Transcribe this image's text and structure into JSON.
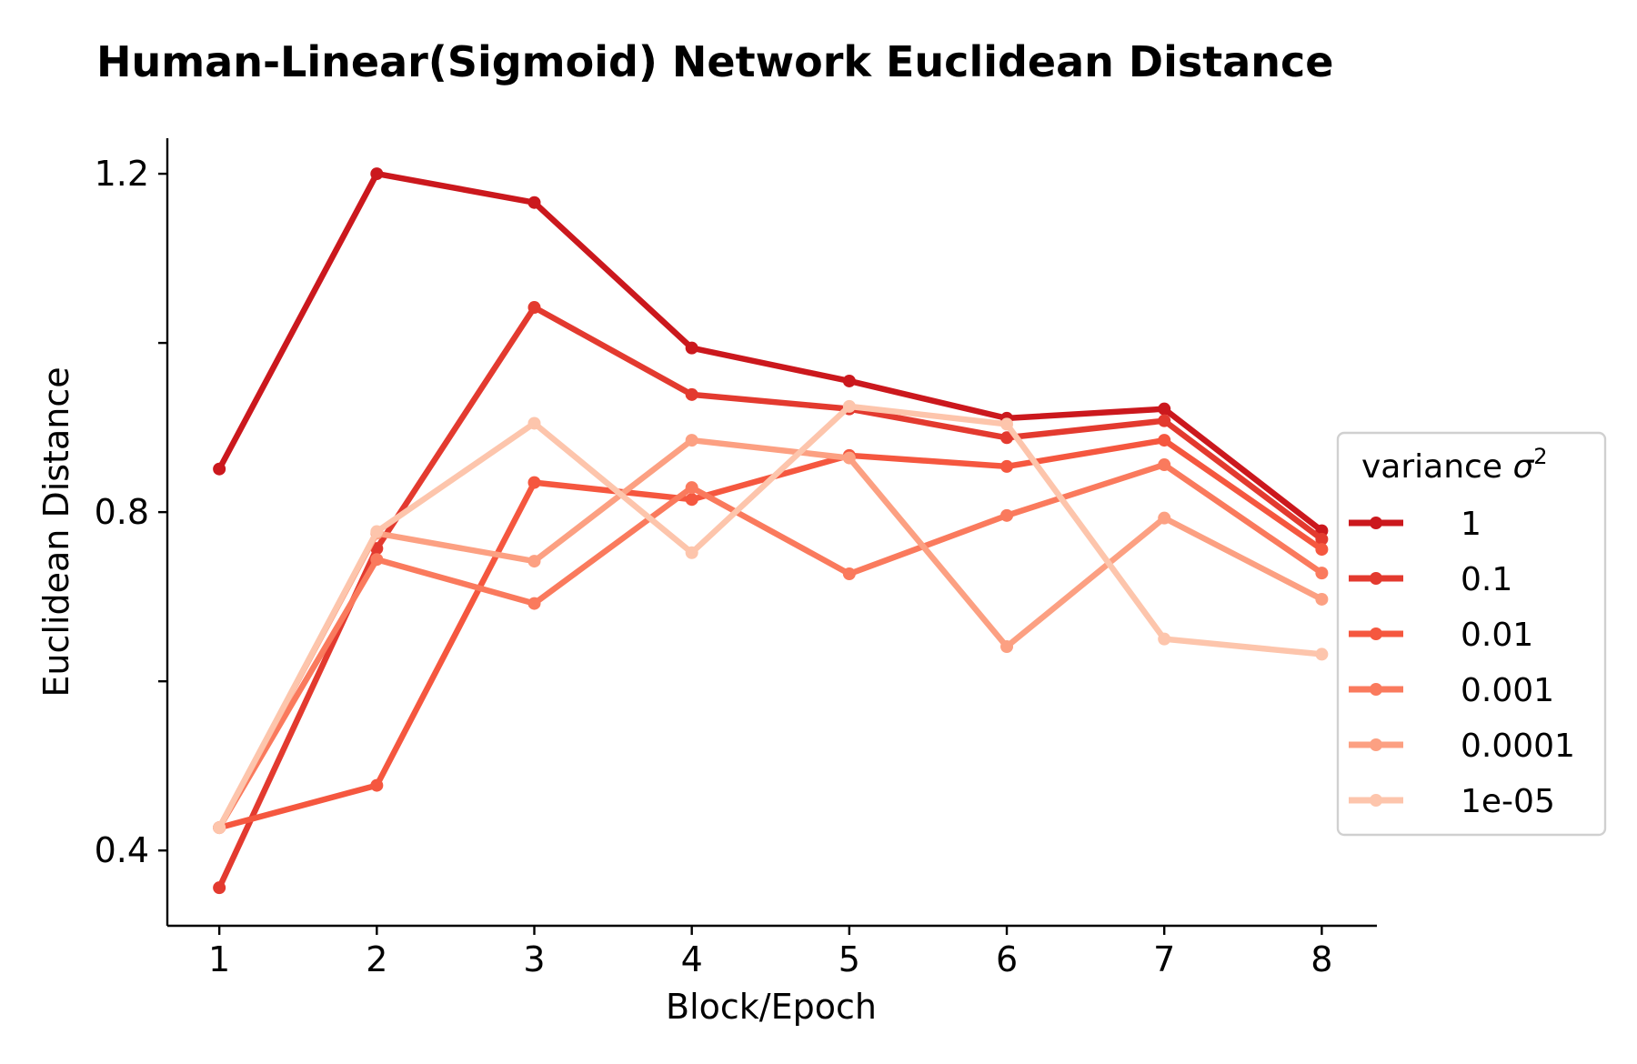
{
  "chart_data": {
    "type": "line",
    "title": "Human-Linear(Sigmoid) Network Euclidean Distance",
    "xlabel": "Block/Epoch",
    "ylabel": "Euclidean Distance",
    "x": [
      1,
      2,
      3,
      4,
      5,
      6,
      7,
      8
    ],
    "xticks": [
      "1",
      "2",
      "3",
      "4",
      "5",
      "6",
      "7",
      "8"
    ],
    "xlim": [
      0.67,
      8.35
    ],
    "ylim": [
      0.311,
      1.242
    ],
    "yticks": [
      0.4,
      0.6,
      0.8,
      1.0,
      1.2
    ],
    "ytick_labels": [
      "0.4",
      "",
      "0.8",
      "",
      "1.2"
    ],
    "grid": false,
    "legend": {
      "title_text": "variance ",
      "title_symbol": "σ",
      "title_exponent": "2",
      "placement": "center-right"
    },
    "series": [
      {
        "name": "1",
        "color": "#cb181d",
        "values": [
          0.851,
          1.2,
          1.166,
          0.994,
          0.955,
          0.911,
          0.922,
          0.778
        ]
      },
      {
        "name": "0.1",
        "color": "#e33a2f",
        "values": [
          0.356,
          0.757,
          1.042,
          0.939,
          0.922,
          0.888,
          0.908,
          0.768
        ]
      },
      {
        "name": "0.01",
        "color": "#f5573f",
        "values": [
          0.427,
          0.477,
          0.835,
          0.815,
          0.867,
          0.854,
          0.885,
          0.756
        ]
      },
      {
        "name": "0.001",
        "color": "#fa7a5d",
        "values": [
          0.427,
          0.744,
          0.692,
          0.829,
          0.727,
          0.796,
          0.856,
          0.728
        ]
      },
      {
        "name": "0.0001",
        "color": "#fca082",
        "values": [
          0.427,
          0.775,
          0.742,
          0.885,
          0.864,
          0.641,
          0.793,
          0.697
        ]
      },
      {
        "name": "1e-05",
        "color": "#fdc5ac",
        "values": [
          0.427,
          0.777,
          0.905,
          0.752,
          0.925,
          0.904,
          0.65,
          0.632
        ]
      }
    ]
  }
}
